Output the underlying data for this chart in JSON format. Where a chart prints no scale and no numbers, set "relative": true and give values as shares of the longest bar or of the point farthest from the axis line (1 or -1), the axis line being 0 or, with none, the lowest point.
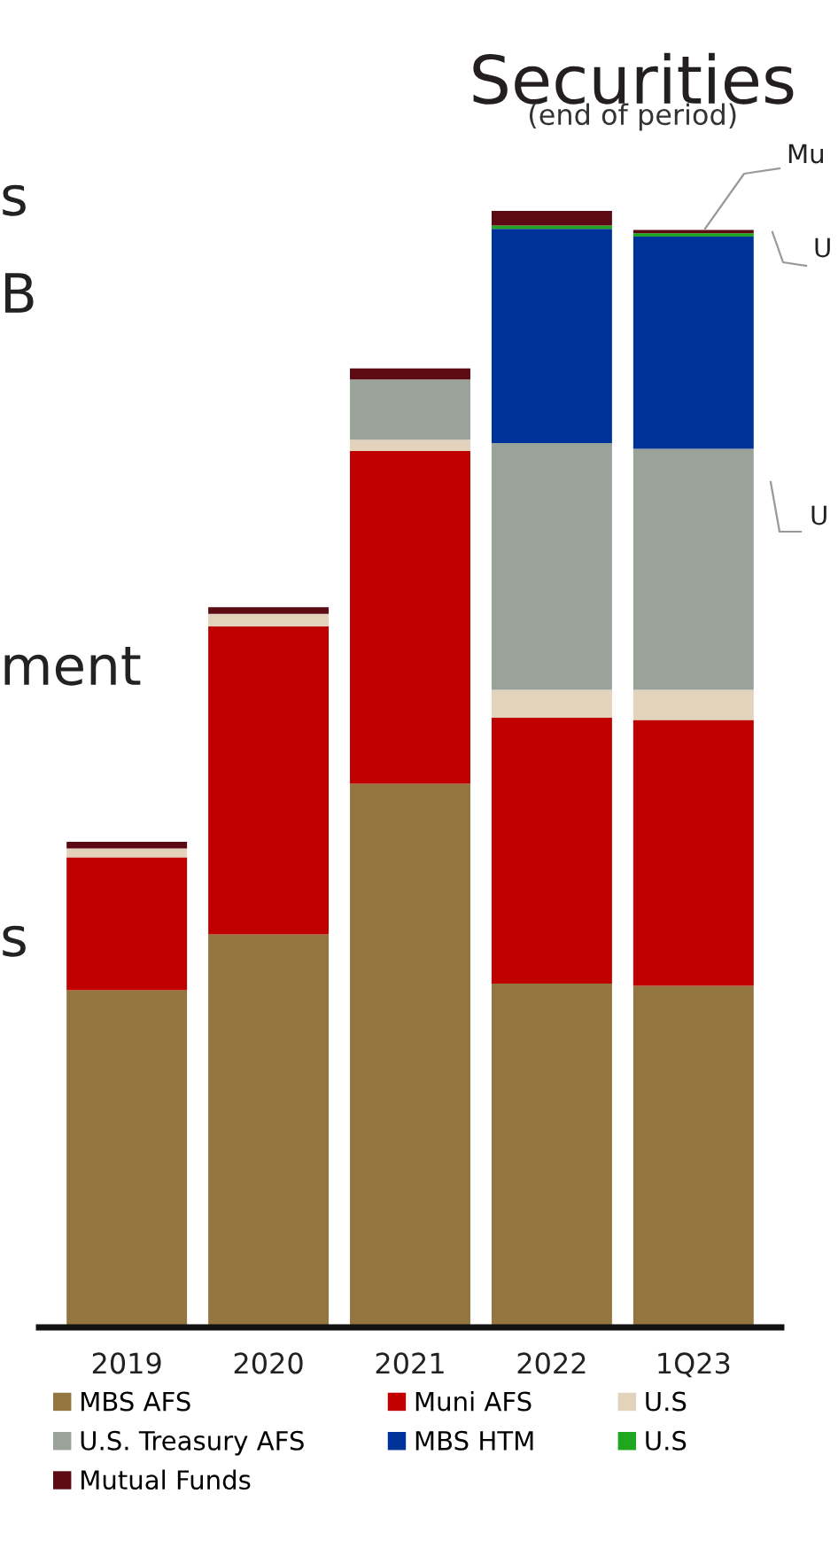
{
  "chart_data": {
    "type": "bar",
    "title": "Securities",
    "subtitle": "(end of period)",
    "stacked": true,
    "relative": true,
    "legend": "bottom",
    "categories": [
      "2019",
      "2020",
      "2021",
      "2022",
      "1Q23"
    ],
    "series": [
      {
        "name": "MBS AFS",
        "color": "#93753f",
        "values": [
          0.302,
          0.352,
          0.487,
          0.308,
          0.306
        ]
      },
      {
        "name": "Muni AFS",
        "color": "#c00000",
        "values": [
          0.119,
          0.276,
          0.298,
          0.238,
          0.238
        ]
      },
      {
        "name": "U.S",
        "color": "#e3d3bd",
        "values": [
          0.008,
          0.011,
          0.01,
          0.025,
          0.027
        ]
      },
      {
        "name": "U.S. Treasury AFS",
        "color": "#9aa39a",
        "values": [
          null,
          null,
          0.054,
          0.221,
          0.216
        ]
      },
      {
        "name": "MBS HTM",
        "color": "#003399",
        "values": [
          null,
          null,
          null,
          0.192,
          0.19
        ]
      },
      {
        "name": "U.S",
        "color": "#1fa81f",
        "values": [
          null,
          null,
          null,
          0.003,
          0.003
        ]
      },
      {
        "name": "Mutual Funds",
        "color": "#5c0a14",
        "values": [
          0.006,
          0.006,
          0.01,
          0.013,
          0.003
        ]
      }
    ],
    "annotations": [
      "s",
      "B",
      "ment",
      "s",
      "Mu",
      "U",
      "U"
    ]
  }
}
